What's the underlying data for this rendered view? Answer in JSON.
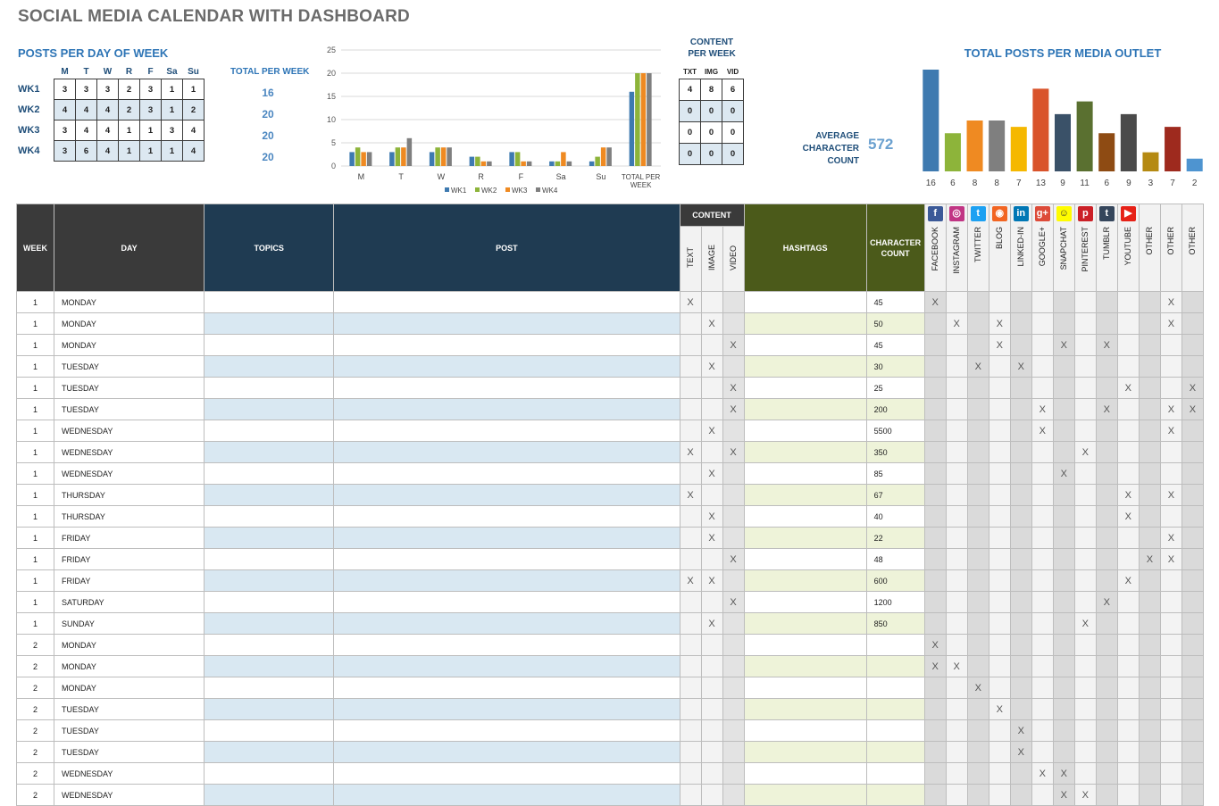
{
  "title": "SOCIAL MEDIA CALENDAR WITH DASHBOARD",
  "posts_per_day": {
    "title": "POSTS PER DAY OF WEEK",
    "days": [
      "M",
      "T",
      "W",
      "R",
      "F",
      "Sa",
      "Su"
    ],
    "total_label": "TOTAL PER WEEK",
    "weeks": [
      {
        "label": "WK1",
        "values": [
          "3",
          "3",
          "3",
          "2",
          "3",
          "1",
          "1"
        ],
        "total": "16"
      },
      {
        "label": "WK2",
        "values": [
          "4",
          "4",
          "4",
          "2",
          "3",
          "1",
          "2"
        ],
        "total": "20"
      },
      {
        "label": "WK3",
        "values": [
          "3",
          "4",
          "4",
          "1",
          "1",
          "3",
          "4"
        ],
        "total": "20"
      },
      {
        "label": "WK4",
        "values": [
          "3",
          "6",
          "4",
          "1",
          "1",
          "1",
          "4"
        ],
        "total": "20"
      }
    ]
  },
  "chart_data": [
    {
      "type": "bar",
      "title": "",
      "categories": [
        "M",
        "T",
        "W",
        "R",
        "F",
        "Sa",
        "Su",
        "TOTAL PER WEEK"
      ],
      "series": [
        {
          "name": "WK1",
          "values": [
            3,
            3,
            3,
            2,
            3,
            1,
            1,
            16
          ],
          "color": "#3e7ab0"
        },
        {
          "name": "WK2",
          "values": [
            4,
            4,
            4,
            2,
            3,
            1,
            2,
            20
          ],
          "color": "#8db43a"
        },
        {
          "name": "WK3",
          "values": [
            3,
            4,
            4,
            1,
            1,
            3,
            4,
            20
          ],
          "color": "#ef8a22"
        },
        {
          "name": "WK4",
          "values": [
            3,
            6,
            4,
            1,
            1,
            1,
            4,
            20
          ],
          "color": "#7f7f7f"
        }
      ],
      "yticks": [
        "0",
        "5",
        "10",
        "15",
        "20",
        "25"
      ],
      "ylim": [
        0,
        25
      ],
      "legend": "bottom"
    },
    {
      "type": "bar",
      "title": "TOTAL POSTS PER MEDIA OUTLET",
      "categories": [
        "FACEBOOK",
        "INSTAGRAM",
        "TWITTER",
        "BLOG",
        "LINKED-IN",
        "GOOGLE+",
        "SNAPCHAT",
        "PINTEREST",
        "TUMBLR",
        "YOUTUBE",
        "OTHER",
        "OTHER",
        "OTHER"
      ],
      "values": [
        16,
        6,
        8,
        8,
        7,
        13,
        9,
        11,
        6,
        9,
        3,
        7,
        2
      ],
      "labels": [
        "16",
        "6",
        "8",
        "8",
        "7",
        "13",
        "9",
        "11",
        "6",
        "9",
        "3",
        "7",
        "2"
      ],
      "colors": [
        "#3e7ab0",
        "#8db43a",
        "#ef8a22",
        "#7f7f7f",
        "#f5b800",
        "#d9532b",
        "#3a5168",
        "#5a7030",
        "#8e4b13",
        "#4a4a4a",
        "#b58a12",
        "#9e2a1e",
        "#4e94d0"
      ],
      "ylim": [
        0,
        16
      ]
    }
  ],
  "content_per_week": {
    "title_line1": "CONTENT",
    "title_line2": "PER WEEK",
    "headers": [
      "TXT",
      "IMG",
      "VID"
    ],
    "rows": [
      [
        "4",
        "8",
        "6"
      ],
      [
        "0",
        "0",
        "0"
      ],
      [
        "0",
        "0",
        "0"
      ],
      [
        "0",
        "0",
        "0"
      ]
    ]
  },
  "avg_char": {
    "line1": "AVERAGE",
    "line2": "CHARACTER",
    "line3": "COUNT",
    "value": "572"
  },
  "table": {
    "headers": {
      "week": "WEEK",
      "day": "DAY",
      "topics": "TOPICS",
      "post": "POST",
      "content": "CONTENT",
      "content_types": [
        "TEXT",
        "IMAGE",
        "VIDEO"
      ],
      "hashtags": "HASHTAGS",
      "char_line1": "CHARACTER",
      "char_line2": "COUNT",
      "media": [
        "FACEBOOK",
        "INSTAGRAM",
        "TWITTER",
        "BLOG",
        "LINKED-IN",
        "GOOGLE+",
        "SNAPCHAT",
        "PINTEREST",
        "TUMBLR",
        "YOUTUBE",
        "OTHER",
        "OTHER",
        "OTHER"
      ],
      "media_icons": [
        "facebook-icon",
        "instagram-icon",
        "twitter-icon",
        "blog-icon",
        "linkedin-icon",
        "googleplus-icon",
        "snapchat-icon",
        "pinterest-icon",
        "tumblr-icon",
        "youtube-icon",
        "",
        "",
        ""
      ]
    },
    "icon_glyphs": [
      "f",
      "◎",
      "t",
      "◉",
      "in",
      "g+",
      "☺",
      "p",
      "t",
      "▶",
      "",
      "",
      ""
    ],
    "icon_colors": [
      "#3b5998",
      "#c13584",
      "#1da1f2",
      "#f26522",
      "#0077b5",
      "#dd4b39",
      "#fffc00",
      "#cb2027",
      "#35465c",
      "#e62117",
      "",
      "",
      ""
    ],
    "mark": "X",
    "rows": [
      {
        "week": "1",
        "day": "MONDAY",
        "cc": "45",
        "content": [
          1,
          0,
          0
        ],
        "media": [
          1,
          0,
          0,
          0,
          0,
          0,
          0,
          0,
          0,
          0,
          0,
          1,
          0
        ]
      },
      {
        "week": "1",
        "day": "MONDAY",
        "cc": "50",
        "content": [
          0,
          1,
          0
        ],
        "media": [
          0,
          1,
          0,
          1,
          0,
          0,
          0,
          0,
          0,
          0,
          0,
          1,
          0
        ]
      },
      {
        "week": "1",
        "day": "MONDAY",
        "cc": "45",
        "content": [
          0,
          0,
          1
        ],
        "media": [
          0,
          0,
          0,
          1,
          0,
          0,
          1,
          0,
          1,
          0,
          0,
          0,
          0
        ]
      },
      {
        "week": "1",
        "day": "TUESDAY",
        "cc": "30",
        "content": [
          0,
          1,
          0
        ],
        "media": [
          0,
          0,
          1,
          0,
          1,
          0,
          0,
          0,
          0,
          0,
          0,
          0,
          0
        ]
      },
      {
        "week": "1",
        "day": "TUESDAY",
        "cc": "25",
        "content": [
          0,
          0,
          1
        ],
        "media": [
          0,
          0,
          0,
          0,
          0,
          0,
          0,
          0,
          0,
          1,
          0,
          0,
          1
        ]
      },
      {
        "week": "1",
        "day": "TUESDAY",
        "cc": "200",
        "content": [
          0,
          0,
          1
        ],
        "media": [
          0,
          0,
          0,
          0,
          0,
          1,
          0,
          0,
          1,
          0,
          0,
          1,
          1
        ]
      },
      {
        "week": "1",
        "day": "WEDNESDAY",
        "cc": "5500",
        "content": [
          0,
          1,
          0
        ],
        "media": [
          0,
          0,
          0,
          0,
          0,
          1,
          0,
          0,
          0,
          0,
          0,
          1,
          0
        ]
      },
      {
        "week": "1",
        "day": "WEDNESDAY",
        "cc": "350",
        "content": [
          1,
          0,
          1
        ],
        "media": [
          0,
          0,
          0,
          0,
          0,
          0,
          0,
          1,
          0,
          0,
          0,
          0,
          0
        ]
      },
      {
        "week": "1",
        "day": "WEDNESDAY",
        "cc": "85",
        "content": [
          0,
          1,
          0
        ],
        "media": [
          0,
          0,
          0,
          0,
          0,
          0,
          1,
          0,
          0,
          0,
          0,
          0,
          0
        ]
      },
      {
        "week": "1",
        "day": "THURSDAY",
        "cc": "67",
        "content": [
          1,
          0,
          0
        ],
        "media": [
          0,
          0,
          0,
          0,
          0,
          0,
          0,
          0,
          0,
          1,
          0,
          1,
          0
        ]
      },
      {
        "week": "1",
        "day": "THURSDAY",
        "cc": "40",
        "content": [
          0,
          1,
          0
        ],
        "media": [
          0,
          0,
          0,
          0,
          0,
          0,
          0,
          0,
          0,
          1,
          0,
          0,
          0
        ]
      },
      {
        "week": "1",
        "day": "FRIDAY",
        "cc": "22",
        "content": [
          0,
          1,
          0
        ],
        "media": [
          0,
          0,
          0,
          0,
          0,
          0,
          0,
          0,
          0,
          0,
          0,
          1,
          0
        ]
      },
      {
        "week": "1",
        "day": "FRIDAY",
        "cc": "48",
        "content": [
          0,
          0,
          1
        ],
        "media": [
          0,
          0,
          0,
          0,
          0,
          0,
          0,
          0,
          0,
          0,
          1,
          1,
          0
        ]
      },
      {
        "week": "1",
        "day": "FRIDAY",
        "cc": "600",
        "content": [
          1,
          1,
          0
        ],
        "media": [
          0,
          0,
          0,
          0,
          0,
          0,
          0,
          0,
          0,
          1,
          0,
          0,
          0
        ]
      },
      {
        "week": "1",
        "day": "SATURDAY",
        "cc": "1200",
        "content": [
          0,
          0,
          1
        ],
        "media": [
          0,
          0,
          0,
          0,
          0,
          0,
          0,
          0,
          1,
          0,
          0,
          0,
          0
        ]
      },
      {
        "week": "1",
        "day": "SUNDAY",
        "cc": "850",
        "content": [
          0,
          1,
          0
        ],
        "media": [
          0,
          0,
          0,
          0,
          0,
          0,
          0,
          1,
          0,
          0,
          0,
          0,
          0
        ]
      },
      {
        "week": "2",
        "day": "MONDAY",
        "cc": "",
        "content": [
          0,
          0,
          0
        ],
        "media": [
          1,
          0,
          0,
          0,
          0,
          0,
          0,
          0,
          0,
          0,
          0,
          0,
          0
        ]
      },
      {
        "week": "2",
        "day": "MONDAY",
        "cc": "",
        "content": [
          0,
          0,
          0
        ],
        "media": [
          1,
          1,
          0,
          0,
          0,
          0,
          0,
          0,
          0,
          0,
          0,
          0,
          0
        ]
      },
      {
        "week": "2",
        "day": "MONDAY",
        "cc": "",
        "content": [
          0,
          0,
          0
        ],
        "media": [
          0,
          0,
          1,
          0,
          0,
          0,
          0,
          0,
          0,
          0,
          0,
          0,
          0
        ]
      },
      {
        "week": "2",
        "day": "TUESDAY",
        "cc": "",
        "content": [
          0,
          0,
          0
        ],
        "media": [
          0,
          0,
          0,
          1,
          0,
          0,
          0,
          0,
          0,
          0,
          0,
          0,
          0
        ]
      },
      {
        "week": "2",
        "day": "TUESDAY",
        "cc": "",
        "content": [
          0,
          0,
          0
        ],
        "media": [
          0,
          0,
          0,
          0,
          1,
          0,
          0,
          0,
          0,
          0,
          0,
          0,
          0
        ]
      },
      {
        "week": "2",
        "day": "TUESDAY",
        "cc": "",
        "content": [
          0,
          0,
          0
        ],
        "media": [
          0,
          0,
          0,
          0,
          1,
          0,
          0,
          0,
          0,
          0,
          0,
          0,
          0
        ]
      },
      {
        "week": "2",
        "day": "WEDNESDAY",
        "cc": "",
        "content": [
          0,
          0,
          0
        ],
        "media": [
          0,
          0,
          0,
          0,
          0,
          1,
          1,
          0,
          0,
          0,
          0,
          0,
          0
        ]
      },
      {
        "week": "2",
        "day": "WEDNESDAY",
        "cc": "",
        "content": [
          0,
          0,
          0
        ],
        "media": [
          0,
          0,
          0,
          0,
          0,
          0,
          1,
          1,
          0,
          0,
          0,
          0,
          0
        ]
      }
    ]
  }
}
